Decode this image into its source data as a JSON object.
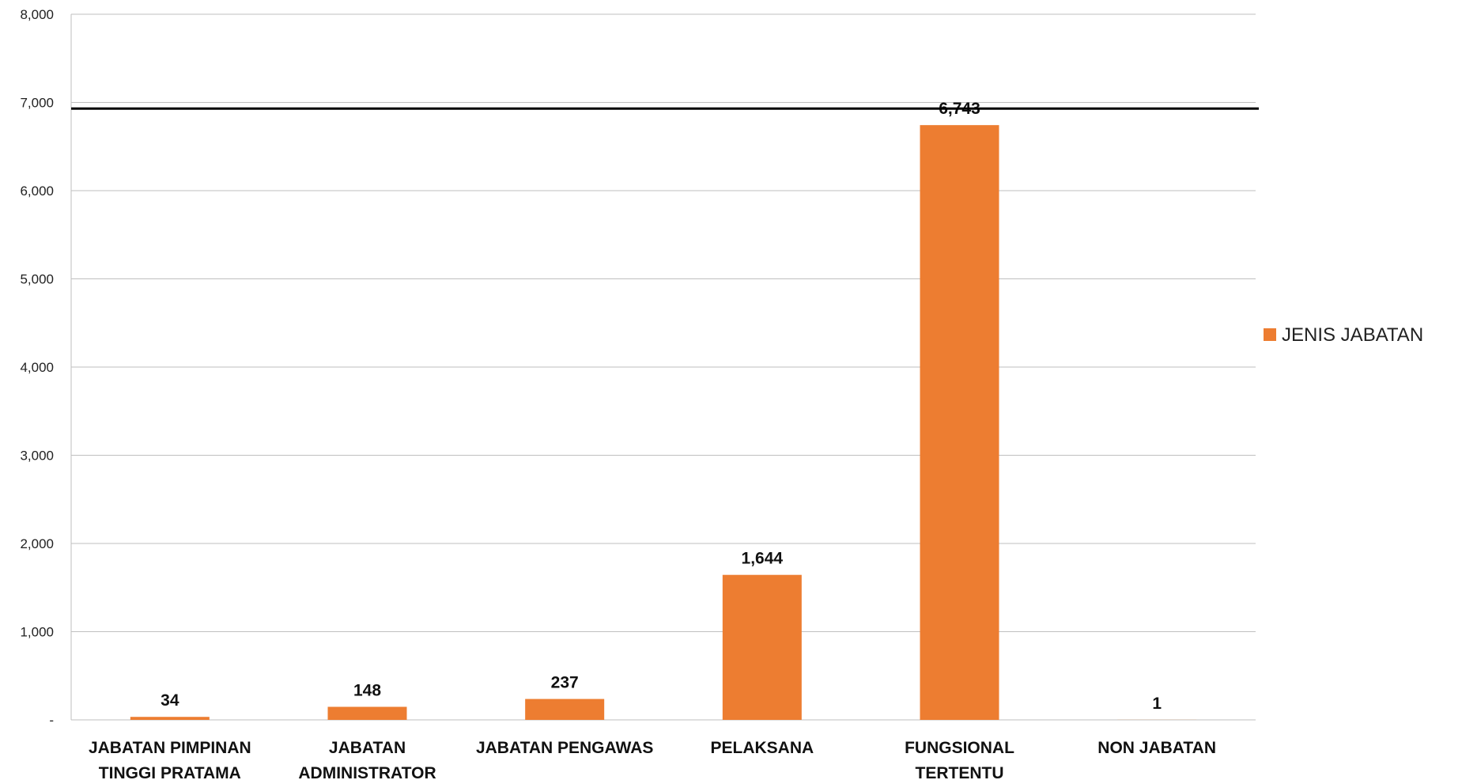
{
  "chart_data": {
    "type": "bar",
    "categories": [
      [
        "JABATAN PIMPINAN",
        "TINGGI PRATAMA"
      ],
      [
        "JABATAN",
        "ADMINISTRATOR"
      ],
      [
        "JABATAN PENGAWAS"
      ],
      [
        "PELAKSANA"
      ],
      [
        "FUNGSIONAL",
        "TERTENTU"
      ],
      [
        "NON JABATAN"
      ]
    ],
    "series": [
      {
        "name": "JENIS JABATAN",
        "values": [
          34,
          148,
          237,
          1644,
          6743,
          1
        ],
        "labels": [
          "34",
          "148",
          "237",
          "1,644",
          "6,743",
          "1"
        ],
        "color": "#ED7D31"
      }
    ],
    "ylim": [
      0,
      8000
    ],
    "yticks": [
      0,
      1000,
      2000,
      3000,
      4000,
      5000,
      6000,
      7000,
      8000
    ],
    "ytick_labels": [
      "-",
      "1,000",
      "2,000",
      "3,000",
      "4,000",
      "5,000",
      "6,000",
      "7,000",
      "8,000"
    ],
    "reference_line": {
      "value": 6930,
      "color": "#000000"
    },
    "grid": true,
    "gridline_color": "#bfbfbf",
    "legend_position": "right"
  }
}
